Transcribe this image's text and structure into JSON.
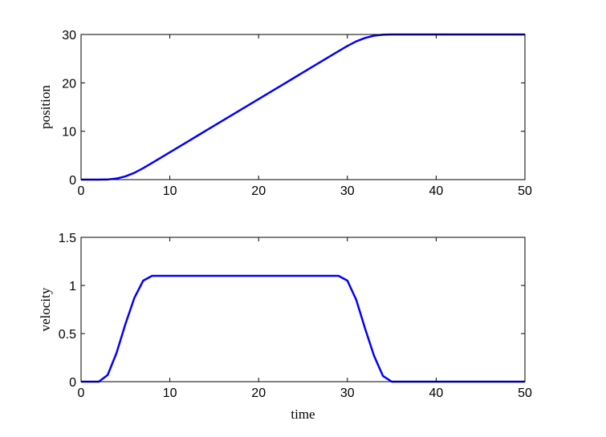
{
  "chart_data": [
    {
      "type": "line",
      "ylabel": "position",
      "x": [
        0,
        1,
        2,
        3,
        4,
        5,
        6,
        7,
        8,
        9,
        10,
        11,
        12,
        13,
        14,
        15,
        16,
        17,
        18,
        19,
        20,
        21,
        22,
        23,
        24,
        25,
        26,
        27,
        28,
        29,
        30,
        31,
        32,
        33,
        34,
        35,
        36,
        37,
        38,
        39,
        40,
        41,
        42,
        43,
        44,
        45,
        46,
        47,
        48,
        49,
        50
      ],
      "series": [
        {
          "color": "#0000ff",
          "values": [
            0,
            0,
            0,
            0.03,
            0.22,
            0.67,
            1.4,
            2.37,
            3.45,
            4.55,
            5.65,
            6.75,
            7.85,
            8.95,
            10.05,
            11.15,
            12.25,
            13.35,
            14.45,
            15.55,
            16.65,
            17.75,
            18.85,
            19.95,
            21.05,
            22.15,
            23.25,
            24.35,
            25.45,
            26.55,
            27.63,
            28.58,
            29.28,
            29.75,
            29.95,
            30,
            30,
            30,
            30,
            30,
            30,
            30,
            30,
            30,
            30,
            30,
            30,
            30,
            30,
            30,
            30
          ]
        }
      ],
      "xlim": [
        0,
        50
      ],
      "xticks": [
        0,
        10,
        20,
        30,
        40,
        50
      ],
      "ylim": [
        0,
        30
      ],
      "yticks": [
        0,
        10,
        20,
        30
      ]
    },
    {
      "type": "line",
      "xlabel": "time",
      "ylabel": "velocity",
      "x": [
        0,
        1,
        2,
        3,
        4,
        5,
        6,
        7,
        8,
        9,
        10,
        11,
        12,
        13,
        14,
        15,
        16,
        17,
        18,
        19,
        20,
        21,
        22,
        23,
        24,
        25,
        26,
        27,
        28,
        29,
        30,
        31,
        32,
        33,
        34,
        35,
        36,
        37,
        38,
        39,
        40,
        41,
        42,
        43,
        44,
        45,
        46,
        47,
        48,
        49,
        50
      ],
      "series": [
        {
          "color": "#0000ff",
          "values": [
            0,
            0,
            0,
            0.07,
            0.3,
            0.6,
            0.87,
            1.05,
            1.1,
            1.1,
            1.1,
            1.1,
            1.1,
            1.1,
            1.1,
            1.1,
            1.1,
            1.1,
            1.1,
            1.1,
            1.1,
            1.1,
            1.1,
            1.1,
            1.1,
            1.1,
            1.1,
            1.1,
            1.1,
            1.1,
            1.05,
            0.85,
            0.55,
            0.27,
            0.06,
            0,
            0,
            0,
            0,
            0,
            0,
            0,
            0,
            0,
            0,
            0,
            0,
            0,
            0,
            0,
            0
          ]
        }
      ],
      "xlim": [
        0,
        50
      ],
      "xticks": [
        0,
        10,
        20,
        30,
        40,
        50
      ],
      "ylim": [
        0,
        1.5
      ],
      "yticks": [
        0,
        0.5,
        1,
        1.5
      ]
    }
  ]
}
